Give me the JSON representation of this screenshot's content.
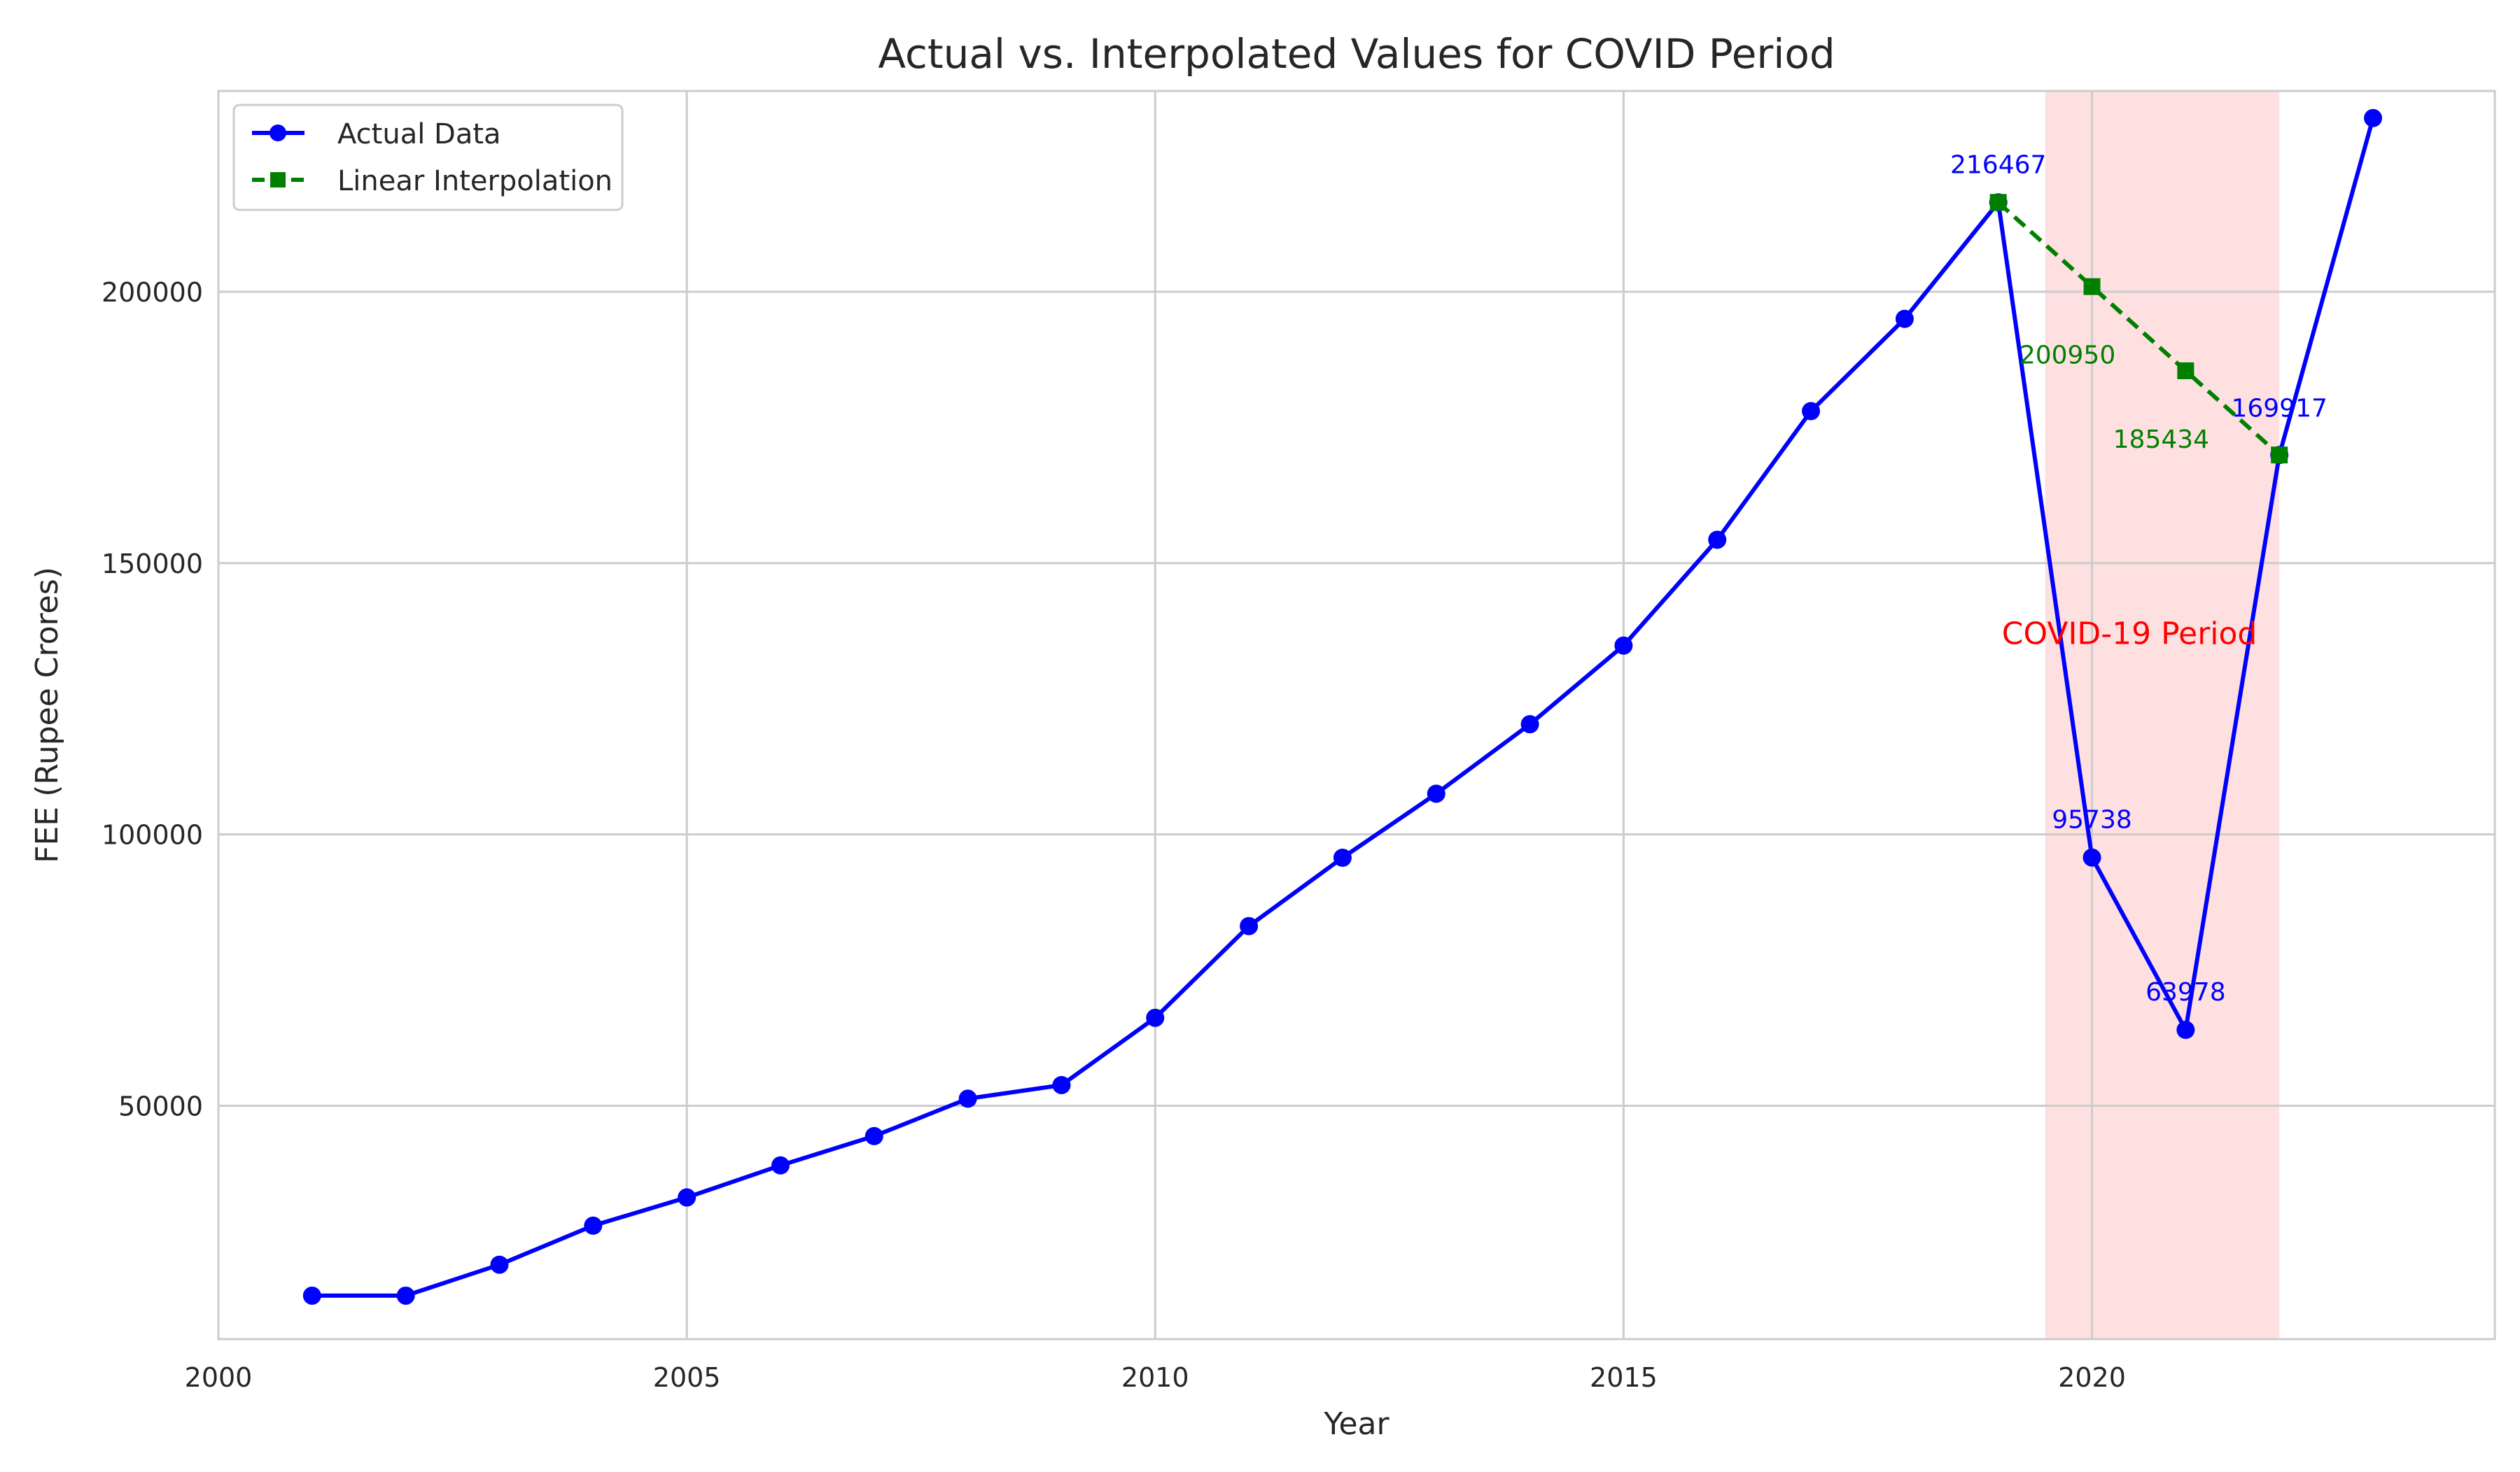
{
  "chart_data": {
    "type": "line",
    "title": "Actual vs. Interpolated Values for COVID Period",
    "xlabel": "Year",
    "ylabel": "FEE (Rupee Crores)",
    "xlim": [
      2000,
      2024.3
    ],
    "ylim": [
      7000,
      237000
    ],
    "xticks": [
      2000,
      2005,
      2010,
      2015,
      2020
    ],
    "xtick_labels": [
      "2000",
      "2005",
      "2010",
      "2015",
      "2020"
    ],
    "yticks": [
      50000,
      100000,
      150000,
      200000
    ],
    "ytick_labels": [
      "50000",
      "100000",
      "150000",
      "200000"
    ],
    "grid": true,
    "legend_position": "top-left",
    "shaded_region": {
      "x_start": 2019.5,
      "x_end": 2022,
      "color": "#ff9999",
      "label": "COVID-19 Period",
      "label_color": "#ff0000",
      "label_x": 2020.4,
      "label_y": 137000
    },
    "series": [
      {
        "name": "Actual Data",
        "color": "#0000ff",
        "style": "solid",
        "marker": "circle",
        "x": [
          2001,
          2002,
          2003,
          2004,
          2005,
          2006,
          2007,
          2008,
          2009,
          2010,
          2011,
          2012,
          2013,
          2014,
          2015,
          2016,
          2017,
          2018,
          2019,
          2020,
          2021,
          2022,
          2023
        ],
        "y": [
          15000,
          15000,
          20700,
          27900,
          33100,
          39000,
          44400,
          51300,
          53800,
          66200,
          83100,
          95700,
          107500,
          120300,
          134800,
          154300,
          178000,
          195000,
          216467,
          95738,
          63978,
          169917,
          232000
        ]
      },
      {
        "name": "Linear Interpolation",
        "color": "#008000",
        "style": "dashed",
        "marker": "square",
        "x": [
          2019,
          2020,
          2021,
          2022
        ],
        "y": [
          216467,
          200950,
          185434,
          169917
        ]
      }
    ],
    "annotations": [
      {
        "text": "216467",
        "x": 2019,
        "y": 216467,
        "color": "#0000ff",
        "pos": "above"
      },
      {
        "text": "95738",
        "x": 2020,
        "y": 95738,
        "color": "#0000ff",
        "pos": "above"
      },
      {
        "text": "63978",
        "x": 2021,
        "y": 63978,
        "color": "#0000ff",
        "pos": "above"
      },
      {
        "text": "169917",
        "x": 2022,
        "y": 169917,
        "color": "#0000ff",
        "pos": "above-high"
      },
      {
        "text": "200950",
        "x": 2020,
        "y": 200950,
        "color": "#008000",
        "pos": "below"
      },
      {
        "text": "185434",
        "x": 2021,
        "y": 185434,
        "color": "#008000",
        "pos": "below"
      }
    ]
  }
}
